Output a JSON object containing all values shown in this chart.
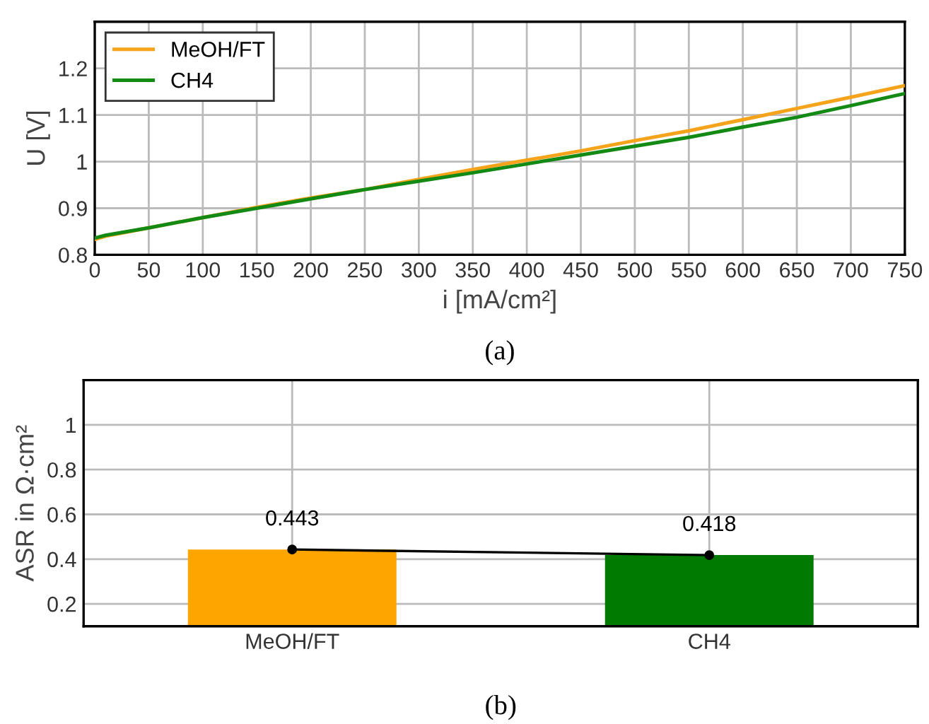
{
  "chart_data": [
    {
      "type": "line",
      "xlabel": "i [mA/cm²]",
      "ylabel": "U [V]",
      "xlim": [
        0,
        750
      ],
      "ylim": [
        0.8,
        1.3
      ],
      "xticks": [
        0,
        50,
        100,
        150,
        200,
        250,
        300,
        350,
        400,
        450,
        500,
        550,
        600,
        650,
        700,
        750
      ],
      "yticks": [
        0.8,
        0.9,
        1,
        1.1,
        1.2
      ],
      "grid": true,
      "legend": "top left",
      "annotations": [
        "(a)"
      ],
      "series": [
        {
          "name": "MeOH/FT",
          "color": "#f5a31a",
          "x": [
            0,
            10,
            50,
            100,
            150,
            200,
            250,
            300,
            350,
            400,
            450,
            500,
            550,
            600,
            650,
            700,
            750
          ],
          "values": [
            0.833,
            0.84,
            0.858,
            0.88,
            0.902,
            0.922,
            0.94,
            0.962,
            0.983,
            1.003,
            1.023,
            1.045,
            1.066,
            1.09,
            1.114,
            1.138,
            1.163
          ]
        },
        {
          "name": "CH4",
          "color": "#138a13",
          "x": [
            0,
            10,
            50,
            100,
            150,
            200,
            250,
            300,
            350,
            400,
            450,
            500,
            550,
            600,
            650,
            700,
            750
          ],
          "values": [
            0.836,
            0.842,
            0.858,
            0.88,
            0.9,
            0.92,
            0.94,
            0.958,
            0.976,
            0.995,
            1.014,
            1.033,
            1.052,
            1.074,
            1.095,
            1.12,
            1.146
          ]
        }
      ]
    },
    {
      "type": "bar",
      "ylabel": "ASR in Ω·cm²",
      "categories": [
        "MeOH/FT",
        "CH4"
      ],
      "ylim": [
        0.1,
        1.2
      ],
      "yticks": [
        0.2,
        0.4,
        0.6,
        0.8,
        1
      ],
      "grid": true,
      "annotations": [
        "(b)"
      ],
      "series": [
        {
          "type": "bar",
          "colors": [
            "#ffa500",
            "#007a00"
          ],
          "values": [
            0.443,
            0.418
          ]
        },
        {
          "type": "line",
          "color": "#000000",
          "marker": "circle",
          "data_labels": true,
          "values": [
            0.443,
            0.418
          ]
        }
      ]
    }
  ]
}
